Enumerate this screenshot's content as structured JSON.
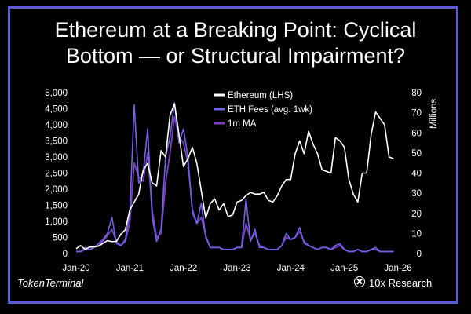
{
  "header": {
    "title_line1": "Ethereum at a Breaking Point: Cyclical",
    "title_line2": "Bottom — or Structural Impairment?"
  },
  "footer": {
    "source": "TokenTerminal",
    "brand": "10x Research"
  },
  "colors": {
    "background": "#000000",
    "frame": "#5b5bd6",
    "ethereum": "#ffffff",
    "fees": "#6f63e6",
    "ma": "#7b3fc4"
  },
  "chart_data": {
    "type": "line",
    "ylabel_right": "Millions",
    "ylim_left": [
      0,
      5000
    ],
    "ylim_right": [
      0,
      80
    ],
    "yticks_left": [
      "0",
      "500",
      "1,000",
      "1,500",
      "2,000",
      "2,500",
      "3,000",
      "3,500",
      "4,000",
      "4,500",
      "5,000"
    ],
    "yticks_right": [
      "0",
      "10",
      "20",
      "30",
      "40",
      "50",
      "60",
      "70",
      "80"
    ],
    "xticks": [
      "Jan-20",
      "Jan-21",
      "Jan-22",
      "Jan-23",
      "Jan-24",
      "Jan-25",
      "Jan-26"
    ],
    "x_range": [
      "2020-01",
      "2026-01"
    ],
    "legend": [
      "Ethereum (LHS)",
      "ETH Fees (avg. 1wk)",
      "1m MA"
    ],
    "legend_position": "top-center",
    "series": [
      {
        "name": "Ethereum (LHS)",
        "axis": "left",
        "x": [
          "2020-01",
          "2020-02",
          "2020-03",
          "2020-04",
          "2020-05",
          "2020-06",
          "2020-07",
          "2020-08",
          "2020-09",
          "2020-10",
          "2020-11",
          "2020-12",
          "2021-01",
          "2021-02",
          "2021-03",
          "2021-04",
          "2021-05",
          "2021-06",
          "2021-07",
          "2021-08",
          "2021-09",
          "2021-10",
          "2021-11",
          "2021-12",
          "2022-01",
          "2022-02",
          "2022-03",
          "2022-04",
          "2022-05",
          "2022-06",
          "2022-07",
          "2022-08",
          "2022-09",
          "2022-10",
          "2022-11",
          "2022-12",
          "2023-01",
          "2023-02",
          "2023-03",
          "2023-04",
          "2023-05",
          "2023-06",
          "2023-07",
          "2023-08",
          "2023-09",
          "2023-10",
          "2023-11",
          "2023-12",
          "2024-01",
          "2024-02",
          "2024-03",
          "2024-04",
          "2024-05",
          "2024-06",
          "2024-07",
          "2024-08",
          "2024-09",
          "2024-10",
          "2024-11",
          "2024-12",
          "2025-01",
          "2025-02",
          "2025-03",
          "2025-04",
          "2025-05",
          "2025-06",
          "2025-07",
          "2025-08",
          "2025-09",
          "2025-10",
          "2025-11",
          "2025-12"
        ],
        "values": [
          150,
          250,
          130,
          200,
          210,
          230,
          320,
          400,
          370,
          380,
          600,
          740,
          1350,
          1600,
          1850,
          2600,
          2800,
          2200,
          2100,
          3200,
          3000,
          4300,
          4650,
          3700,
          2700,
          2950,
          3300,
          2800,
          1950,
          1100,
          1550,
          1700,
          1350,
          1550,
          1150,
          1200,
          1600,
          1650,
          1800,
          1900,
          1850,
          1850,
          1900,
          1650,
          1600,
          1800,
          2100,
          2300,
          2300,
          3100,
          3500,
          3100,
          3800,
          3400,
          3100,
          2600,
          2550,
          2500,
          3600,
          3500,
          3300,
          2300,
          1850,
          1600,
          2500,
          2500,
          3700,
          4400,
          4200,
          4000,
          3000,
          2950
        ]
      },
      {
        "name": "ETH Fees (avg. 1wk)",
        "axis": "right",
        "x": [
          "2020-01",
          "2020-02",
          "2020-03",
          "2020-04",
          "2020-05",
          "2020-06",
          "2020-07",
          "2020-08",
          "2020-09",
          "2020-10",
          "2020-11",
          "2020-12",
          "2021-01",
          "2021-02",
          "2021-03",
          "2021-04",
          "2021-05",
          "2021-06",
          "2021-07",
          "2021-08",
          "2021-09",
          "2021-10",
          "2021-11",
          "2021-12",
          "2022-01",
          "2022-02",
          "2022-03",
          "2022-04",
          "2022-05",
          "2022-06",
          "2022-07",
          "2022-08",
          "2022-09",
          "2022-10",
          "2022-11",
          "2022-12",
          "2023-01",
          "2023-02",
          "2023-03",
          "2023-04",
          "2023-05",
          "2023-06",
          "2023-07",
          "2023-08",
          "2023-09",
          "2023-10",
          "2023-11",
          "2023-12",
          "2024-01",
          "2024-02",
          "2024-03",
          "2024-04",
          "2024-05",
          "2024-06",
          "2024-07",
          "2024-08",
          "2024-09",
          "2024-10",
          "2024-11",
          "2024-12",
          "2025-01",
          "2025-02",
          "2025-03",
          "2025-04",
          "2025-05",
          "2025-06",
          "2025-07",
          "2025-08",
          "2025-09",
          "2025-10",
          "2025-11",
          "2025-12"
        ],
        "values": [
          1,
          1,
          3,
          2,
          3,
          5,
          7,
          10,
          18,
          5,
          4,
          7,
          20,
          74,
          35,
          40,
          62,
          18,
          6,
          12,
          48,
          58,
          75,
          55,
          62,
          48,
          20,
          15,
          25,
          8,
          3,
          3,
          3,
          2,
          2,
          2,
          3,
          3,
          27,
          6,
          12,
          3,
          3,
          2,
          2,
          2,
          4,
          10,
          7,
          8,
          13,
          5,
          4,
          3,
          2,
          3,
          3,
          2,
          4,
          5,
          2,
          1,
          1,
          2,
          1,
          1,
          2,
          3,
          1,
          1,
          1,
          1
        ]
      },
      {
        "name": "1m MA",
        "axis": "right",
        "x": [
          "2020-01",
          "2020-02",
          "2020-03",
          "2020-04",
          "2020-05",
          "2020-06",
          "2020-07",
          "2020-08",
          "2020-09",
          "2020-10",
          "2020-11",
          "2020-12",
          "2021-01",
          "2021-02",
          "2021-03",
          "2021-04",
          "2021-05",
          "2021-06",
          "2021-07",
          "2021-08",
          "2021-09",
          "2021-10",
          "2021-11",
          "2021-12",
          "2022-01",
          "2022-02",
          "2022-03",
          "2022-04",
          "2022-05",
          "2022-06",
          "2022-07",
          "2022-08",
          "2022-09",
          "2022-10",
          "2022-11",
          "2022-12",
          "2023-01",
          "2023-02",
          "2023-03",
          "2023-04",
          "2023-05",
          "2023-06",
          "2023-07",
          "2023-08",
          "2023-09",
          "2023-10",
          "2023-11",
          "2023-12",
          "2024-01",
          "2024-02",
          "2024-03",
          "2024-04",
          "2024-05",
          "2024-06",
          "2024-07",
          "2024-08",
          "2024-09",
          "2024-10",
          "2024-11",
          "2024-12",
          "2025-01",
          "2025-02",
          "2025-03",
          "2025-04",
          "2025-05",
          "2025-06",
          "2025-07",
          "2025-08",
          "2025-09",
          "2025-10",
          "2025-11",
          "2025-12"
        ],
        "values": [
          1,
          1,
          2,
          2,
          3,
          4,
          6,
          9,
          12,
          6,
          4,
          6,
          15,
          45,
          38,
          36,
          50,
          22,
          8,
          10,
          35,
          50,
          68,
          58,
          55,
          45,
          22,
          15,
          18,
          9,
          3,
          3,
          3,
          2,
          2,
          2,
          3,
          3,
          15,
          7,
          10,
          4,
          3,
          2,
          2,
          2,
          4,
          8,
          7,
          8,
          11,
          6,
          4,
          3,
          2,
          3,
          3,
          2,
          3,
          4,
          2,
          1,
          1,
          2,
          1,
          1,
          2,
          2,
          1,
          1,
          1,
          1
        ]
      }
    ]
  }
}
